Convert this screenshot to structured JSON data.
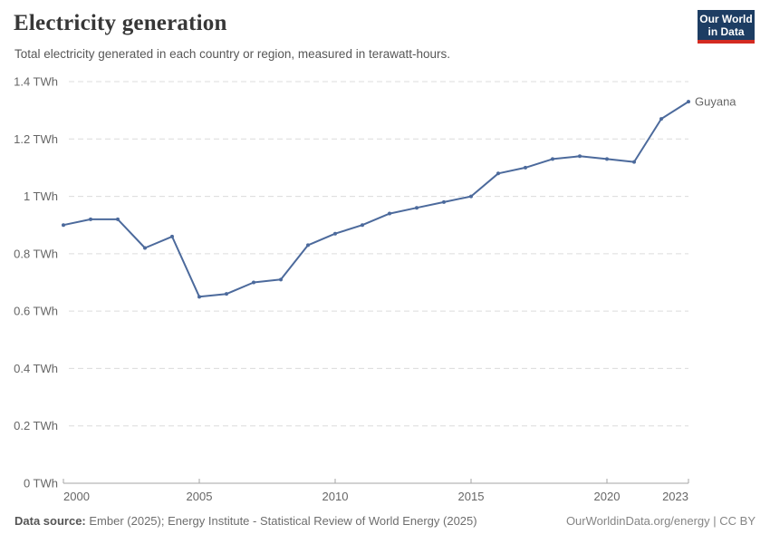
{
  "header": {
    "title": "Electricity generation",
    "subtitle": "Total electricity generated in each country or region, measured in terawatt-hours."
  },
  "logo": {
    "line1": "Our World",
    "line2": "in Data"
  },
  "colors": {
    "series_line": "#4C6A9C",
    "logo_background": "#1d3d63",
    "logo_accent": "#d42b21",
    "gridline": "#dcdcdc",
    "axis": "#a5a5a5",
    "tick_label": "#666666"
  },
  "chart_data": {
    "type": "line",
    "title": "Electricity generation",
    "subtitle": "Total electricity generated in each country or region, measured in terawatt-hours.",
    "unit": "TWh",
    "grid": "horizontal-dashed",
    "legend": "end-of-line-label",
    "xlim": [
      2000,
      2023
    ],
    "ylim": [
      0,
      1.4
    ],
    "x": [
      2000,
      2001,
      2002,
      2003,
      2004,
      2005,
      2006,
      2007,
      2008,
      2009,
      2010,
      2011,
      2012,
      2013,
      2014,
      2015,
      2016,
      2017,
      2018,
      2019,
      2020,
      2021,
      2022,
      2023
    ],
    "series": [
      {
        "name": "Guyana",
        "color": "#4C6A9C",
        "values": [
          0.9,
          0.92,
          0.92,
          0.82,
          0.86,
          0.65,
          0.66,
          0.7,
          0.71,
          0.83,
          0.87,
          0.9,
          0.94,
          0.96,
          0.98,
          1.0,
          1.08,
          1.1,
          1.13,
          1.14,
          1.13,
          1.12,
          1.27,
          1.33
        ]
      }
    ],
    "yticks": [
      {
        "value": 0,
        "label": "0 TWh"
      },
      {
        "value": 0.2,
        "label": "0.2 TWh"
      },
      {
        "value": 0.4,
        "label": "0.4 TWh"
      },
      {
        "value": 0.6,
        "label": "0.6 TWh"
      },
      {
        "value": 0.8,
        "label": "0.8 TWh"
      },
      {
        "value": 1,
        "label": "1 TWh"
      },
      {
        "value": 1.2,
        "label": "1.2 TWh"
      },
      {
        "value": 1.4,
        "label": "1.4 TWh"
      }
    ],
    "xticks": [
      {
        "value": 2000,
        "label": "2000"
      },
      {
        "value": 2005,
        "label": "2005"
      },
      {
        "value": 2010,
        "label": "2010"
      },
      {
        "value": 2015,
        "label": "2015"
      },
      {
        "value": 2020,
        "label": "2020"
      },
      {
        "value": 2023,
        "label": "2023"
      }
    ]
  },
  "footer": {
    "datasource_label": "Data source:",
    "datasource_text": "Ember (2025); Energy Institute - Statistical Review of World Energy (2025)",
    "right_text": "OurWorldinData.org/energy | CC BY"
  }
}
